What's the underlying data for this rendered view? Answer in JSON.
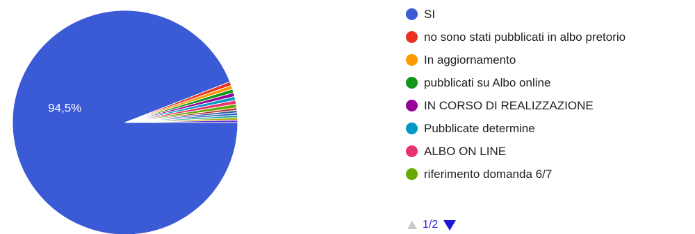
{
  "chart_data": {
    "type": "pie",
    "start_angle_deg": 90,
    "slices": [
      {
        "label": "SI",
        "value": 94.5,
        "color": "#3a5ad6",
        "data_label": "94,5%"
      },
      {
        "label": "no sono stati pubblicati in albo pretorio",
        "value": 0.55,
        "color": "#e8321e"
      },
      {
        "label": "In aggiornamento",
        "value": 0.55,
        "color": "#ff9900"
      },
      {
        "label": "pubblicati su Albo online",
        "value": 0.55,
        "color": "#109618"
      },
      {
        "label": "IN CORSO DI REALIZZAZIONE",
        "value": 0.55,
        "color": "#990099"
      },
      {
        "label": "Pubblicate determine",
        "value": 0.55,
        "color": "#0099c6"
      },
      {
        "label": "ALBO ON LINE",
        "value": 0.55,
        "color": "#e8336e"
      },
      {
        "label": "riferimento domanda 6/7",
        "value": 0.55,
        "color": "#66aa00"
      },
      {
        "label": "",
        "value": 0.35,
        "color": "#b82e2e"
      },
      {
        "label": "",
        "value": 0.35,
        "color": "#316395"
      },
      {
        "label": "",
        "value": 0.35,
        "color": "#3366cc"
      },
      {
        "label": "",
        "value": 0.35,
        "color": "#22aa99"
      },
      {
        "label": "",
        "value": 0.35,
        "color": "#aaaa11"
      },
      {
        "label": "",
        "value": 0.35,
        "color": "#6633cc"
      }
    ],
    "legend_position": "right",
    "slice_border_color": "#ffffff"
  },
  "legend": {
    "items": [
      {
        "label": "SI",
        "color": "#3a5ad6"
      },
      {
        "label": "no sono stati pubblicati in albo pretorio",
        "color": "#e8321e"
      },
      {
        "label": "In aggiornamento",
        "color": "#ff9900"
      },
      {
        "label": "pubblicati su Albo online",
        "color": "#109618"
      },
      {
        "label": "IN CORSO DI REALIZZAZIONE",
        "color": "#990099"
      },
      {
        "label": "Pubblicate determine",
        "color": "#0099c6"
      },
      {
        "label": "ALBO ON LINE",
        "color": "#e8336e"
      },
      {
        "label": "riferimento domanda 6/7",
        "color": "#66aa00"
      }
    ],
    "pager": {
      "label": "1/2",
      "prev_icon": "triangle-up-icon",
      "next_icon": "triangle-down-icon"
    }
  }
}
